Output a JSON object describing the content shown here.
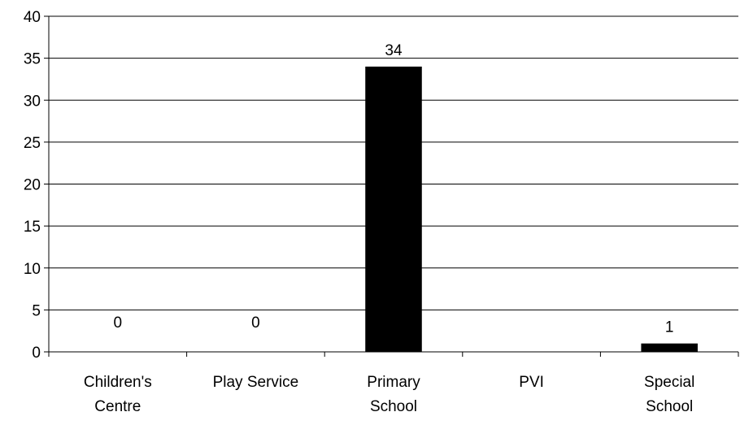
{
  "chart_data": {
    "type": "bar",
    "categories": [
      [
        "Children's",
        "Centre"
      ],
      [
        "Play Service"
      ],
      [
        "Primary",
        "School"
      ],
      [
        "PVI"
      ],
      [
        "Special",
        "School"
      ]
    ],
    "values": [
      0,
      0,
      34,
      null,
      1
    ],
    "data_labels": [
      "0",
      "0",
      "34",
      "",
      "1"
    ],
    "ylim": [
      0,
      40
    ],
    "yticks": [
      0,
      5,
      10,
      15,
      20,
      25,
      30,
      35,
      40
    ],
    "grid": true,
    "bar_color": "#000000",
    "title": "",
    "xlabel": "",
    "ylabel": ""
  }
}
